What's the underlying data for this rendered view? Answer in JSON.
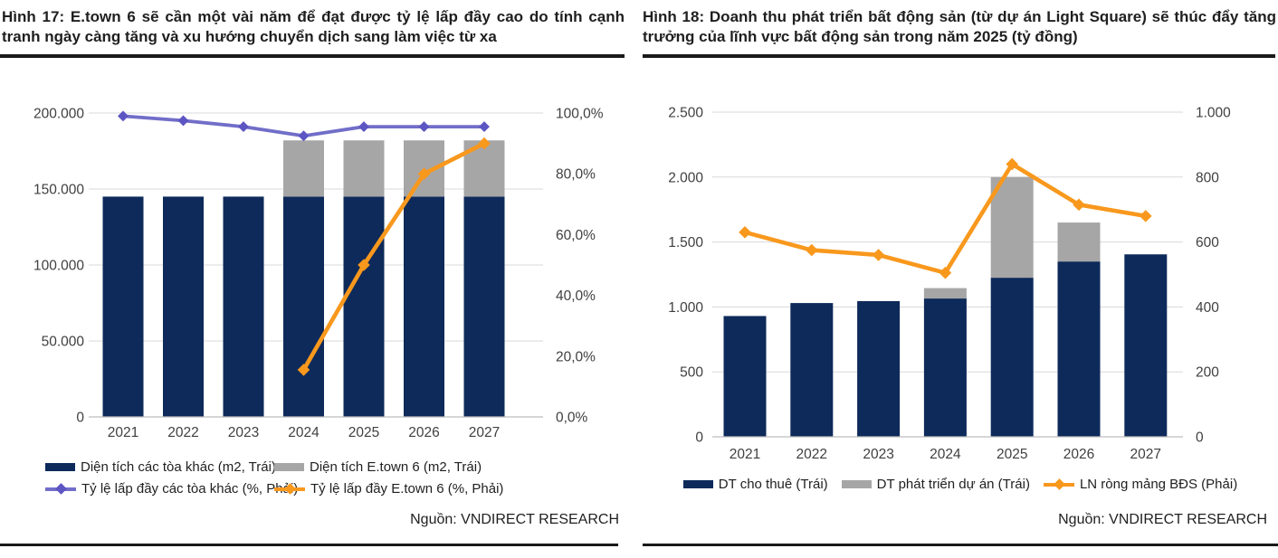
{
  "colors": {
    "navy": "#0D2A5A",
    "gray": "#A6A6A6",
    "purple": "#716EC9",
    "purple_marker": "#5C55C2",
    "orange": "#F8981D",
    "grid": "#D9D9D9",
    "axis_line": "#BEBEBE",
    "axis_text": "#404040",
    "rule": "#1A1A1A"
  },
  "panels": [
    {
      "title": "Hình 17: E.town 6 sẽ cần một vài năm để đạt được tỷ lệ lấp đầy cao do tính cạnh tranh ngày càng tăng và xu hướng chuyển dịch sang làm việc từ xa",
      "source": "Nguồn: VNDIRECT RESEARCH",
      "legend": [
        {
          "swatch": "bar",
          "color": "#0D2A5A",
          "label": "Diện tích các tòa khác (m2, Trái)"
        },
        {
          "swatch": "bar",
          "color": "#A6A6A6",
          "label": "Diện tích E.town 6 (m2, Trái)"
        },
        {
          "swatch": "line",
          "color": "#716EC9",
          "marker": "#5C55C2",
          "label": "Tỷ lệ lấp đầy các tòa khác (%, Phải)"
        },
        {
          "swatch": "line",
          "color": "#F8981D",
          "marker": "#F8981D",
          "label": "Tỷ lệ lấp đầy E.town 6 (%, Phải)"
        }
      ]
    },
    {
      "title": "Hình 18: Doanh thu phát triển bất động sản (từ dự án Light Square) sẽ thúc đẩy tăng trưởng của lĩnh vực bất động sản trong năm 2025 (tỷ đồng)",
      "source": "Nguồn: VNDIRECT RESEARCH",
      "legend": [
        {
          "swatch": "bar",
          "color": "#0D2A5A",
          "label": "DT cho thuê (Trái)"
        },
        {
          "swatch": "bar",
          "color": "#A6A6A6",
          "label": "DT phát triển dự án (Trái)"
        },
        {
          "swatch": "line",
          "color": "#F8981D",
          "marker": "#F8981D",
          "label": "LN ròng mảng BĐS (Phải)"
        }
      ]
    }
  ],
  "chart_data": [
    {
      "type": "bar",
      "subtype": "stacked-bar-plus-lines",
      "title": "Hình 17: E.town 6 sẽ cần một vài năm để đạt được tỷ lệ lấp đầy cao do tính cạnh tranh ngày càng tăng và xu hướng chuyển dịch sang làm việc từ xa",
      "categories": [
        "2021",
        "2022",
        "2023",
        "2024",
        "2025",
        "2026",
        "2027"
      ],
      "bar_series": [
        {
          "name": "Diện tích các tòa khác (m2, Trái)",
          "color": "#0D2A5A",
          "values": [
            145000,
            145000,
            145000,
            145000,
            145000,
            145000,
            145000
          ]
        },
        {
          "name": "Diện tích E.town 6 (m2, Trái)",
          "color": "#A6A6A6",
          "values": [
            0,
            0,
            0,
            37000,
            37000,
            37000,
            37000
          ]
        }
      ],
      "line_series": [
        {
          "name": "Tỷ lệ lấp đầy các tòa khác (%, Phải)",
          "color": "#716EC9",
          "marker_color": "#5C55C2",
          "axis": "right",
          "values": [
            99,
            97.5,
            95.5,
            92.5,
            95.5,
            95.5,
            95.5
          ]
        },
        {
          "name": "Tỷ lệ lấp đầy E.town 6 (%, Phải)",
          "color": "#F8981D",
          "marker_color": "#F8981D",
          "axis": "right",
          "values": [
            null,
            null,
            null,
            15.5,
            50,
            80,
            90
          ]
        }
      ],
      "left_axis": {
        "min": 0,
        "max": 200000,
        "tick_values": [
          200000,
          150000,
          100000,
          50000,
          0
        ],
        "ticks": [
          "200.000",
          "150.000",
          "100.000",
          "50.000",
          "0"
        ]
      },
      "right_axis": {
        "min": 0,
        "max": 100,
        "tick_values": [
          100,
          80,
          60,
          40,
          20,
          0
        ],
        "ticks": [
          "100,0%",
          "80,0%",
          "60,0%",
          "40,0%",
          "20,0%",
          "0,0%"
        ]
      },
      "grid": "horizontal-left-axis-ticks",
      "legend_position": "bottom"
    },
    {
      "type": "bar",
      "subtype": "stacked-bar-plus-lines",
      "title": "Hình 18: Doanh thu phát triển bất động sản (từ dự án Light Square) sẽ thúc đẩy tăng trưởng của lĩnh vực bất động sản trong năm 2025 (tỷ đồng)",
      "categories": [
        "2021",
        "2022",
        "2023",
        "2024",
        "2025",
        "2026",
        "2027"
      ],
      "bar_series": [
        {
          "name": "DT cho thuê (Trái)",
          "color": "#0D2A5A",
          "values": [
            930,
            1030,
            1045,
            1065,
            1225,
            1350,
            1405
          ]
        },
        {
          "name": "DT phát triển dự án (Trái)",
          "color": "#A6A6A6",
          "values": [
            0,
            0,
            0,
            80,
            775,
            300,
            0
          ]
        }
      ],
      "line_series": [
        {
          "name": "LN ròng mảng BĐS (Phải)",
          "color": "#F8981D",
          "marker_color": "#F8981D",
          "axis": "right",
          "values": [
            630,
            575,
            560,
            505,
            840,
            715,
            680
          ]
        }
      ],
      "left_axis": {
        "min": 0,
        "max": 2500,
        "tick_values": [
          2500,
          2000,
          1500,
          1000,
          500,
          0
        ],
        "ticks": [
          "2.500",
          "2.000",
          "1.500",
          "1.000",
          "500",
          "0"
        ]
      },
      "right_axis": {
        "min": 0,
        "max": 1000,
        "tick_values": [
          1000,
          800,
          600,
          400,
          200,
          0
        ],
        "ticks": [
          "1.000",
          "800",
          "600",
          "400",
          "200",
          "0"
        ]
      },
      "grid": "horizontal-left-axis-ticks",
      "legend_position": "bottom"
    }
  ]
}
